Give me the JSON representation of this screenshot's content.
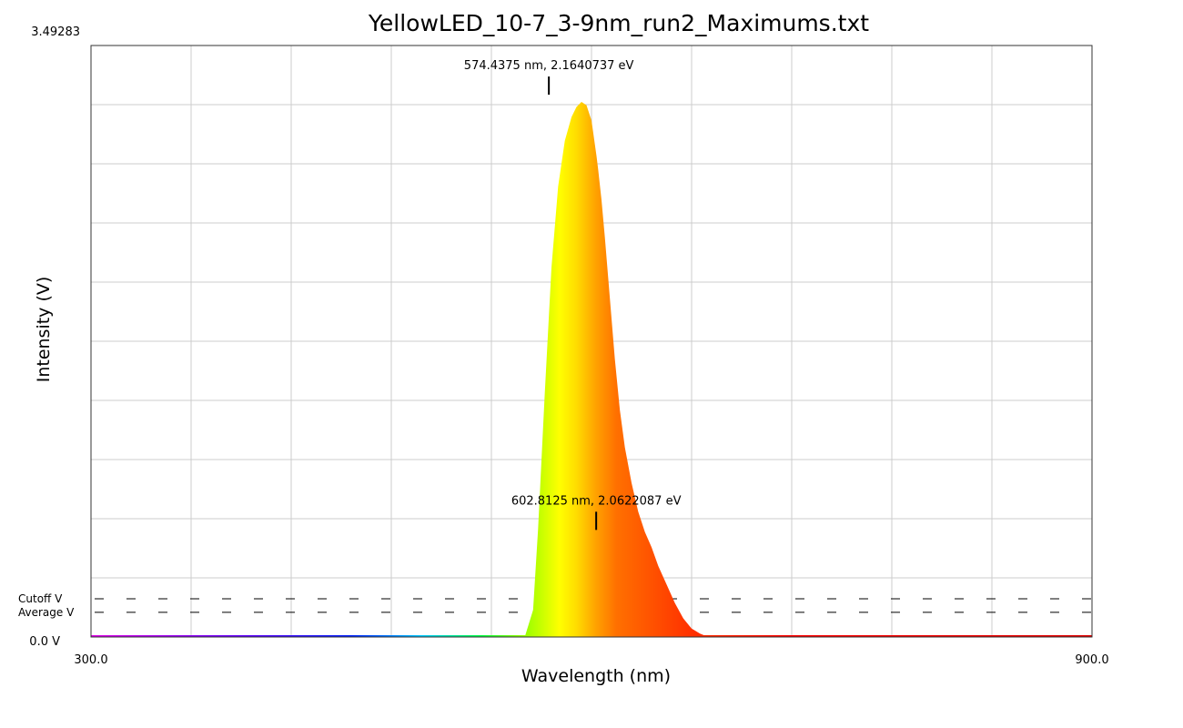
{
  "chart_data": {
    "type": "area",
    "title": "YellowLED_10-7_3-9nm_run2_Maximums.txt",
    "xlabel": "Wavelength (nm)",
    "ylabel": "Intensity (V)",
    "xlim": [
      300.0,
      900.0
    ],
    "ylim": [
      0.0,
      3.49283
    ],
    "x_tick_labels": {
      "min": "300.0",
      "max": "900.0"
    },
    "y_tick_labels": {
      "min": "0.0 V",
      "max": "3.49283"
    },
    "grid": true,
    "x_gridlines": [
      300,
      360,
      420,
      480,
      540,
      600,
      660,
      720,
      780,
      840,
      900
    ],
    "y_gridlines": [
      0,
      0.34928,
      0.69857,
      1.04785,
      1.39713,
      1.74642,
      2.0957,
      2.44498,
      2.79426,
      3.14355,
      3.49283
    ],
    "fill": "wavelength-spectrum-gradient",
    "series": [
      {
        "x": [
          300,
          560,
          565,
          568,
          572,
          576,
          580,
          584,
          588,
          591,
          594,
          597,
          600,
          602,
          603,
          604,
          606,
          608,
          611,
          614,
          617,
          620,
          624,
          628,
          632,
          636,
          640,
          645,
          650,
          655,
          660,
          665,
          670,
          900
        ],
        "y": [
          0,
          0,
          0.16,
          0.64,
          1.44,
          2.18,
          2.66,
          2.93,
          3.07,
          3.13,
          3.16,
          3.14,
          3.05,
          2.91,
          2.84,
          2.76,
          2.58,
          2.36,
          2.0,
          1.64,
          1.34,
          1.12,
          0.91,
          0.74,
          0.62,
          0.53,
          0.42,
          0.31,
          0.2,
          0.11,
          0.05,
          0.02,
          0,
          0
        ]
      }
    ],
    "peaks": [
      {
        "wavelength": 574.4375,
        "value": 3.17,
        "label": "574.4375 nm, 2.1640737 eV"
      },
      {
        "wavelength": 602.8125,
        "value": 0.6,
        "label": "602.8125 nm, 2.0622087 eV"
      }
    ],
    "reference_lines": [
      {
        "label": "Cutoff V",
        "value": 0.226,
        "style": "dashed"
      },
      {
        "label": "Average V",
        "value": 0.146,
        "style": "dashed"
      }
    ]
  }
}
